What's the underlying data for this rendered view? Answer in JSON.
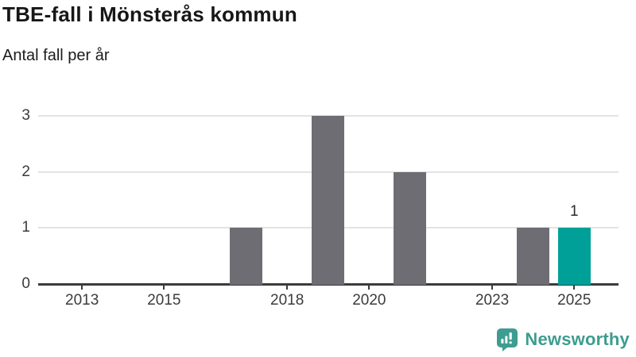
{
  "header": {
    "title": "TBE-fall i Mönsterås kommun",
    "subtitle": "Antal fall per år"
  },
  "chart_data": {
    "type": "bar",
    "title": "TBE-fall i Mönsterås kommun",
    "subtitle": "Antal fall per år",
    "xlabel": "",
    "ylabel": "",
    "categories": [
      2013,
      2014,
      2015,
      2016,
      2017,
      2018,
      2019,
      2020,
      2021,
      2022,
      2023,
      2024,
      2025
    ],
    "values": [
      0,
      0,
      0,
      0,
      1,
      0,
      3,
      0,
      2,
      0,
      0,
      1,
      1
    ],
    "ylim": [
      0,
      3
    ],
    "xlim": [
      2011.93,
      2026.08
    ],
    "yticks": [
      0,
      1,
      2,
      3
    ],
    "xticks": [
      2013,
      2015,
      2018,
      2020,
      2023,
      2025
    ],
    "grid": true,
    "legend_position": "none",
    "bar_color": "#6f6d74",
    "highlight_color": "#00a099",
    "highlight_category": 2025,
    "data_labels": [
      {
        "category": 2025,
        "label": "1"
      }
    ]
  },
  "footer": {
    "brand": "Newsworthy",
    "brand_color": "#3e9c90",
    "logo_icon": "bar-chart-speech-bubble-icon"
  }
}
